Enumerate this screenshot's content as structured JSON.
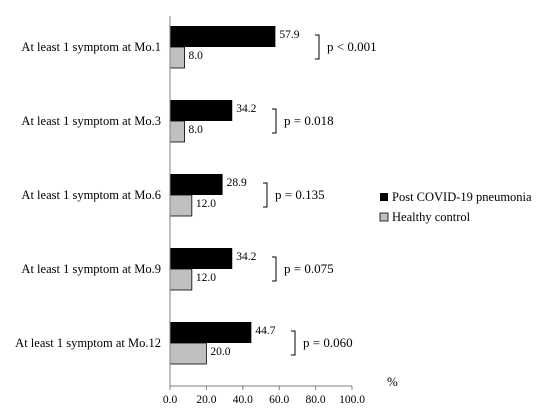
{
  "chart_data": {
    "type": "bar",
    "orientation": "horizontal",
    "categories": [
      "At least 1 symptom at Mo.1",
      "At least 1 symptom at Mo.3",
      "At least 1 symptom at Mo.6",
      "At least 1 symptom at Mo.9",
      "At least 1 symptom at Mo.12"
    ],
    "series": [
      {
        "name": "Post COVID-19 pneumonia",
        "color": "#000000",
        "values": [
          57.9,
          34.2,
          28.9,
          34.2,
          44.7
        ],
        "labels": [
          "57.9",
          "34.2",
          "28.9",
          "34.2",
          "44.7"
        ]
      },
      {
        "name": "Healthy control",
        "color": "#c0c0c0",
        "values": [
          8.0,
          8.0,
          12.0,
          12.0,
          20.0
        ],
        "labels": [
          "8.0",
          "8.0",
          "12.0",
          "12.0",
          "20.0"
        ]
      }
    ],
    "p_values": [
      "p < 0.001",
      "p = 0.018",
      "p = 0.135",
      "p = 0.075",
      "p = 0.060"
    ],
    "xlim": [
      0,
      100
    ],
    "xticks": [
      "0.0",
      "20.0",
      "40.0",
      "60.0",
      "80.0",
      "100.0"
    ],
    "xunit": "%",
    "legend_position": "right",
    "grid": false
  }
}
